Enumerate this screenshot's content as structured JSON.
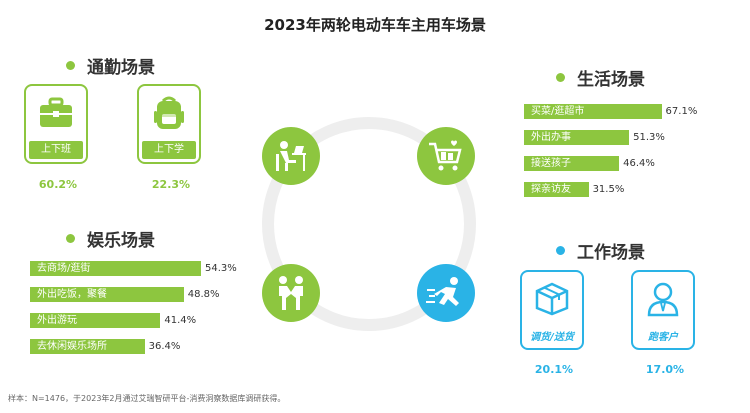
{
  "title": "2023年两轮电动车车主用车场景",
  "colors": {
    "green": "#8dc63f",
    "blue": "#2ab3e6"
  },
  "commute": {
    "title": "通勤场景",
    "items": [
      {
        "label": "上下班",
        "value": "60.2%",
        "icon": "briefcase-icon"
      },
      {
        "label": "上下学",
        "value": "22.3%",
        "icon": "backpack-icon"
      }
    ]
  },
  "life": {
    "title": "生活场景"
  },
  "entertainment": {
    "title": "娱乐场景"
  },
  "work": {
    "title": "工作场景",
    "items": [
      {
        "label": "调货/送货",
        "value": "20.1%",
        "icon": "package-icon"
      },
      {
        "label": "跑客户",
        "value": "17.0%",
        "icon": "person-icon"
      }
    ]
  },
  "center_icons": [
    "desk-worker-icon",
    "shopping-cart-icon",
    "handshake-icon",
    "running-person-icon"
  ],
  "chart_data": [
    {
      "type": "bar",
      "orientation": "horizontal",
      "title": "生活场景",
      "categories": [
        "买菜/逛超市",
        "外出办事",
        "接送孩子",
        "探亲访友"
      ],
      "values": [
        67.1,
        51.3,
        46.4,
        31.5
      ],
      "value_labels": [
        "67.1%",
        "51.3%",
        "46.4%",
        "31.5%"
      ]
    },
    {
      "type": "bar",
      "orientation": "horizontal",
      "title": "娱乐场景",
      "categories": [
        "去商场/逛街",
        "外出吃饭，聚餐",
        "外出游玩",
        "去休闲娱乐场所"
      ],
      "values": [
        54.3,
        48.8,
        41.4,
        36.4
      ],
      "value_labels": [
        "54.3%",
        "48.8%",
        "41.4%",
        "36.4%"
      ]
    }
  ],
  "footnote": "样本：N=1476，于2023年2月通过艾瑞智研平台-消费洞察数据库调研获得。"
}
